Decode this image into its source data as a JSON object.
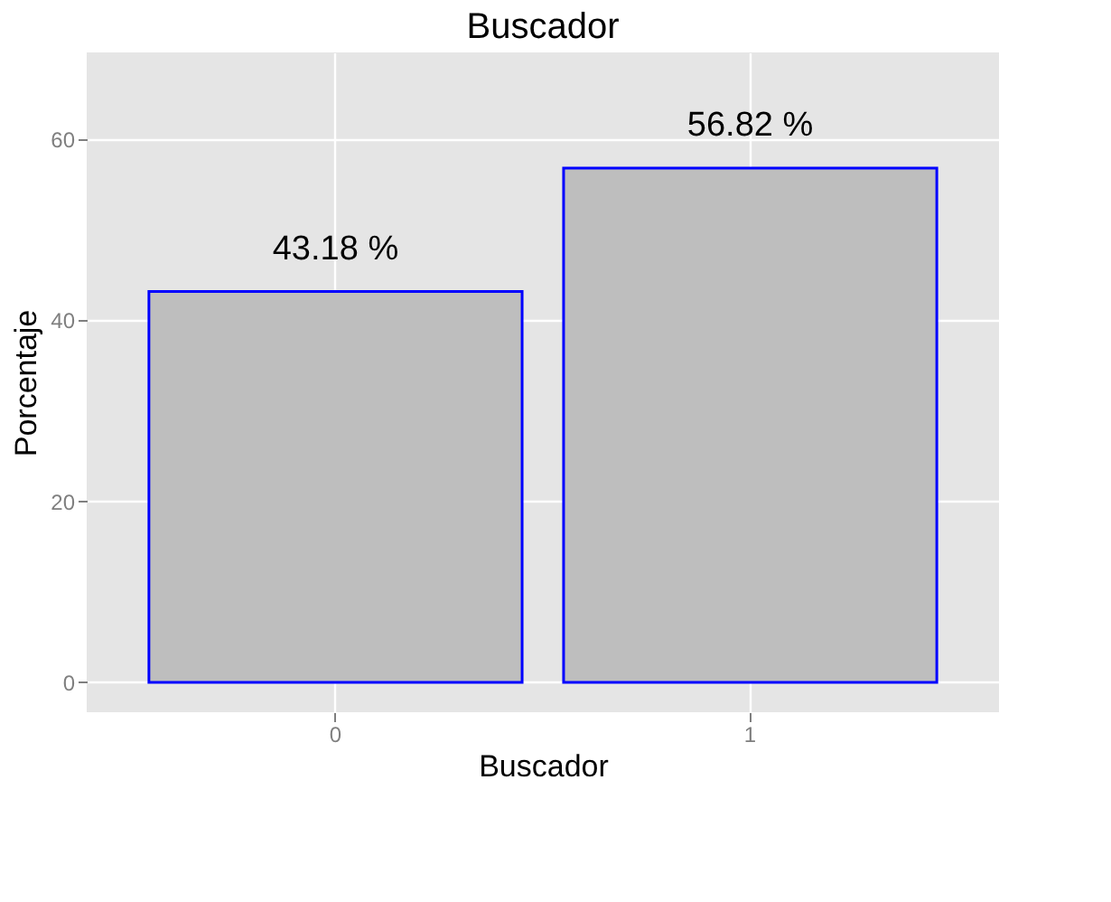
{
  "chart_data": {
    "type": "bar",
    "title": "Buscador",
    "xlabel": "Buscador",
    "ylabel": "Porcentaje",
    "categories": [
      "0",
      "1"
    ],
    "values": [
      43.18,
      56.82
    ],
    "value_labels": [
      "43.18 %",
      "56.82 %"
    ],
    "color": "#bebebe",
    "ylim": [
      -3.3,
      69.6
    ],
    "yticks": [
      0,
      20,
      40,
      60
    ],
    "grid": true
  }
}
